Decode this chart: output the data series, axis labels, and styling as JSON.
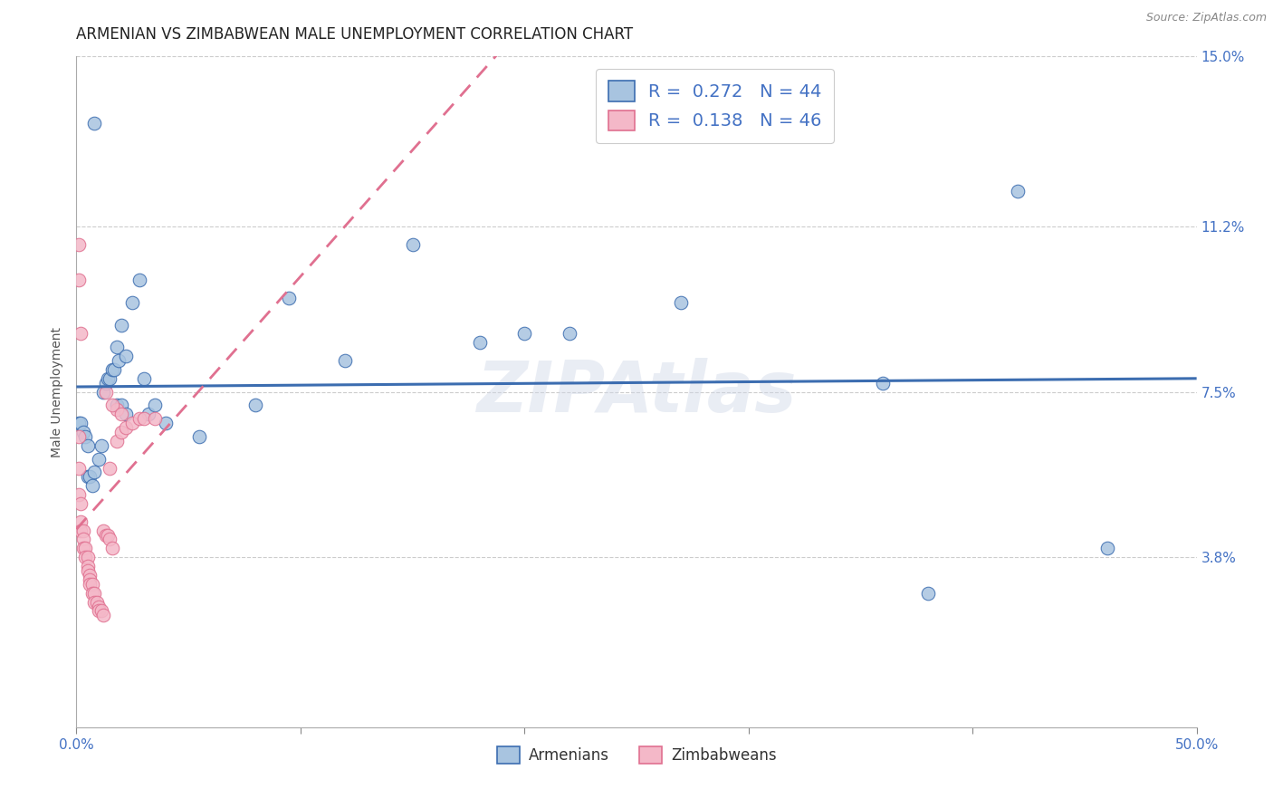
{
  "title": "ARMENIAN VS ZIMBABWEAN MALE UNEMPLOYMENT CORRELATION CHART",
  "source": "Source: ZipAtlas.com",
  "ylabel": "Male Unemployment",
  "xlim": [
    0,
    0.5
  ],
  "ylim": [
    0,
    0.15
  ],
  "right_ytick_labels": [
    "15.0%",
    "11.2%",
    "7.5%",
    "3.8%"
  ],
  "right_ytick_vals": [
    0.15,
    0.112,
    0.075,
    0.038
  ],
  "armenian_color": "#a8c4e0",
  "zimbabwean_color": "#f4b8c8",
  "armenian_line_color": "#3c6db0",
  "zimbabwean_line_color": "#e07090",
  "legend_R_armenian": "0.272",
  "legend_N_armenian": "44",
  "legend_R_zimbabwean": "0.138",
  "legend_N_zimbabwean": "46",
  "armenian_points": [
    [
      0.001,
      0.068
    ],
    [
      0.002,
      0.068
    ],
    [
      0.003,
      0.066
    ],
    [
      0.004,
      0.065
    ],
    [
      0.005,
      0.063
    ],
    [
      0.005,
      0.056
    ],
    [
      0.006,
      0.056
    ],
    [
      0.007,
      0.054
    ],
    [
      0.008,
      0.057
    ],
    [
      0.01,
      0.06
    ],
    [
      0.011,
      0.063
    ],
    [
      0.012,
      0.075
    ],
    [
      0.013,
      0.077
    ],
    [
      0.014,
      0.078
    ],
    [
      0.015,
      0.078
    ],
    [
      0.016,
      0.08
    ],
    [
      0.017,
      0.08
    ],
    [
      0.018,
      0.085
    ],
    [
      0.019,
      0.082
    ],
    [
      0.02,
      0.09
    ],
    [
      0.022,
      0.083
    ],
    [
      0.025,
      0.095
    ],
    [
      0.028,
      0.1
    ],
    [
      0.03,
      0.078
    ],
    [
      0.032,
      0.07
    ],
    [
      0.035,
      0.072
    ],
    [
      0.018,
      0.072
    ],
    [
      0.02,
      0.072
    ],
    [
      0.022,
      0.07
    ],
    [
      0.04,
      0.068
    ],
    [
      0.055,
      0.065
    ],
    [
      0.08,
      0.072
    ],
    [
      0.095,
      0.096
    ],
    [
      0.12,
      0.082
    ],
    [
      0.15,
      0.108
    ],
    [
      0.18,
      0.086
    ],
    [
      0.2,
      0.088
    ],
    [
      0.22,
      0.088
    ],
    [
      0.27,
      0.095
    ],
    [
      0.36,
      0.077
    ],
    [
      0.42,
      0.12
    ],
    [
      0.46,
      0.04
    ],
    [
      0.38,
      0.03
    ],
    [
      0.008,
      0.135
    ]
  ],
  "zimbabwean_points": [
    [
      0.001,
      0.065
    ],
    [
      0.001,
      0.058
    ],
    [
      0.001,
      0.052
    ],
    [
      0.002,
      0.05
    ],
    [
      0.002,
      0.046
    ],
    [
      0.002,
      0.044
    ],
    [
      0.003,
      0.044
    ],
    [
      0.003,
      0.042
    ],
    [
      0.003,
      0.04
    ],
    [
      0.004,
      0.04
    ],
    [
      0.004,
      0.038
    ],
    [
      0.005,
      0.038
    ],
    [
      0.005,
      0.036
    ],
    [
      0.005,
      0.035
    ],
    [
      0.006,
      0.034
    ],
    [
      0.006,
      0.033
    ],
    [
      0.006,
      0.032
    ],
    [
      0.007,
      0.032
    ],
    [
      0.007,
      0.03
    ],
    [
      0.008,
      0.03
    ],
    [
      0.008,
      0.028
    ],
    [
      0.009,
      0.028
    ],
    [
      0.01,
      0.027
    ],
    [
      0.01,
      0.026
    ],
    [
      0.011,
      0.026
    ],
    [
      0.012,
      0.025
    ],
    [
      0.012,
      0.044
    ],
    [
      0.013,
      0.043
    ],
    [
      0.014,
      0.043
    ],
    [
      0.015,
      0.042
    ],
    [
      0.015,
      0.058
    ],
    [
      0.016,
      0.04
    ],
    [
      0.018,
      0.064
    ],
    [
      0.018,
      0.071
    ],
    [
      0.02,
      0.066
    ],
    [
      0.022,
      0.067
    ],
    [
      0.025,
      0.068
    ],
    [
      0.028,
      0.069
    ],
    [
      0.03,
      0.069
    ],
    [
      0.035,
      0.069
    ],
    [
      0.001,
      0.1
    ],
    [
      0.001,
      0.108
    ],
    [
      0.002,
      0.088
    ],
    [
      0.013,
      0.075
    ],
    [
      0.016,
      0.072
    ],
    [
      0.02,
      0.07
    ]
  ],
  "background_color": "#ffffff",
  "grid_color": "#cccccc",
  "watermark": "ZIPAtlas",
  "title_fontsize": 12,
  "source_fontsize": 9,
  "label_fontsize": 10,
  "scatter_size": 110
}
